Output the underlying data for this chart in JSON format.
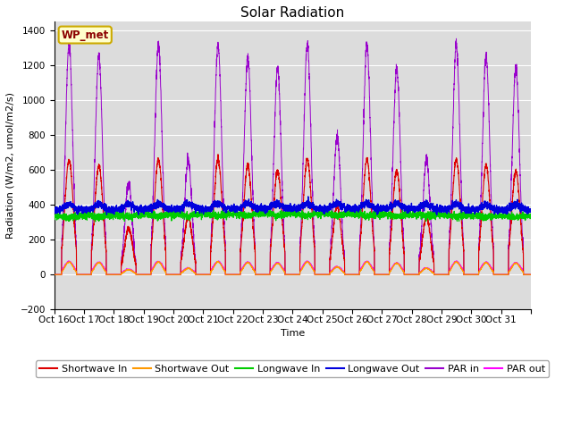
{
  "title": "Solar Radiation",
  "ylabel": "Radiation (W/m2, umol/m2/s)",
  "xlabel": "Time",
  "ylim": [
    -200,
    1450
  ],
  "yticks": [
    -200,
    0,
    200,
    400,
    600,
    800,
    1000,
    1200,
    1400
  ],
  "background_color": "#dcdcdc",
  "fig_background": "#ffffff",
  "label_box_text": "WP_met",
  "label_box_facecolor": "#ffffcc",
  "label_box_edgecolor": "#ccaa00",
  "colors": {
    "shortwave_in": "#dd0000",
    "shortwave_out": "#ff9900",
    "longwave_in": "#00cc00",
    "longwave_out": "#0000dd",
    "par_in": "#9900cc",
    "par_out": "#ff00ff"
  },
  "n_days": 16,
  "points_per_day": 288,
  "longwave_in_base": 335,
  "longwave_out_base": 370,
  "shortwave_peak": 660,
  "par_in_peak": 1320,
  "par_out_peak": 75,
  "xtick_labels": [
    "Oct 16",
    "Oct 17",
    "Oct 18",
    "Oct 19",
    "Oct 20",
    "Oct 21",
    "Oct 22",
    "Oct 23",
    "Oct 24",
    "Oct 25",
    "Oct 26",
    "Oct 27",
    "Oct 28",
    "Oct 29",
    "Oct 30",
    "Oct 31"
  ],
  "title_fontsize": 11,
  "axis_fontsize": 8,
  "tick_fontsize": 7.5,
  "legend_fontsize": 8
}
